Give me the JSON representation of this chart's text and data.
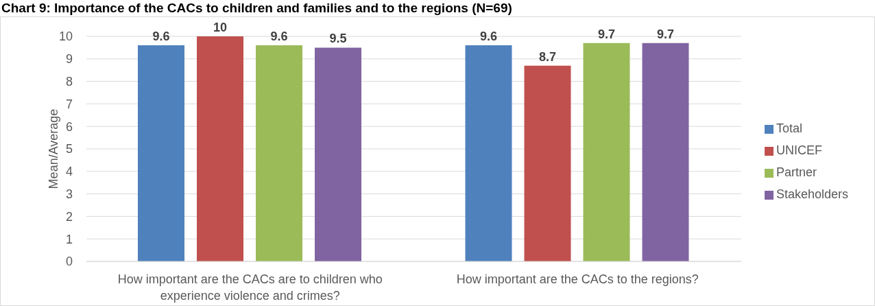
{
  "chart_data": {
    "type": "bar",
    "title": "Chart 9: Importance of the CACs to children and families and to the regions (N=69)",
    "ylabel": "Mean/Average",
    "categories": [
      "How important are the CACs are to children who experience violence and crimes?",
      "How important are the CACs to the regions?"
    ],
    "series": [
      {
        "name": "Total",
        "color": "#4f81bd",
        "values": [
          9.6,
          9.6
        ]
      },
      {
        "name": "UNICEF",
        "color": "#c0504d",
        "values": [
          10,
          8.7
        ]
      },
      {
        "name": "Partner",
        "color": "#9bbb59",
        "values": [
          9.6,
          9.7
        ]
      },
      {
        "name": "Stakeholders",
        "color": "#8064a2",
        "values": [
          9.5,
          9.7
        ]
      }
    ],
    "ylim": [
      0,
      10
    ],
    "yticks": [
      0,
      1,
      2,
      3,
      4,
      5,
      6,
      7,
      8,
      9,
      10
    ],
    "grid": "y",
    "legend": "right",
    "data_labels": true
  }
}
